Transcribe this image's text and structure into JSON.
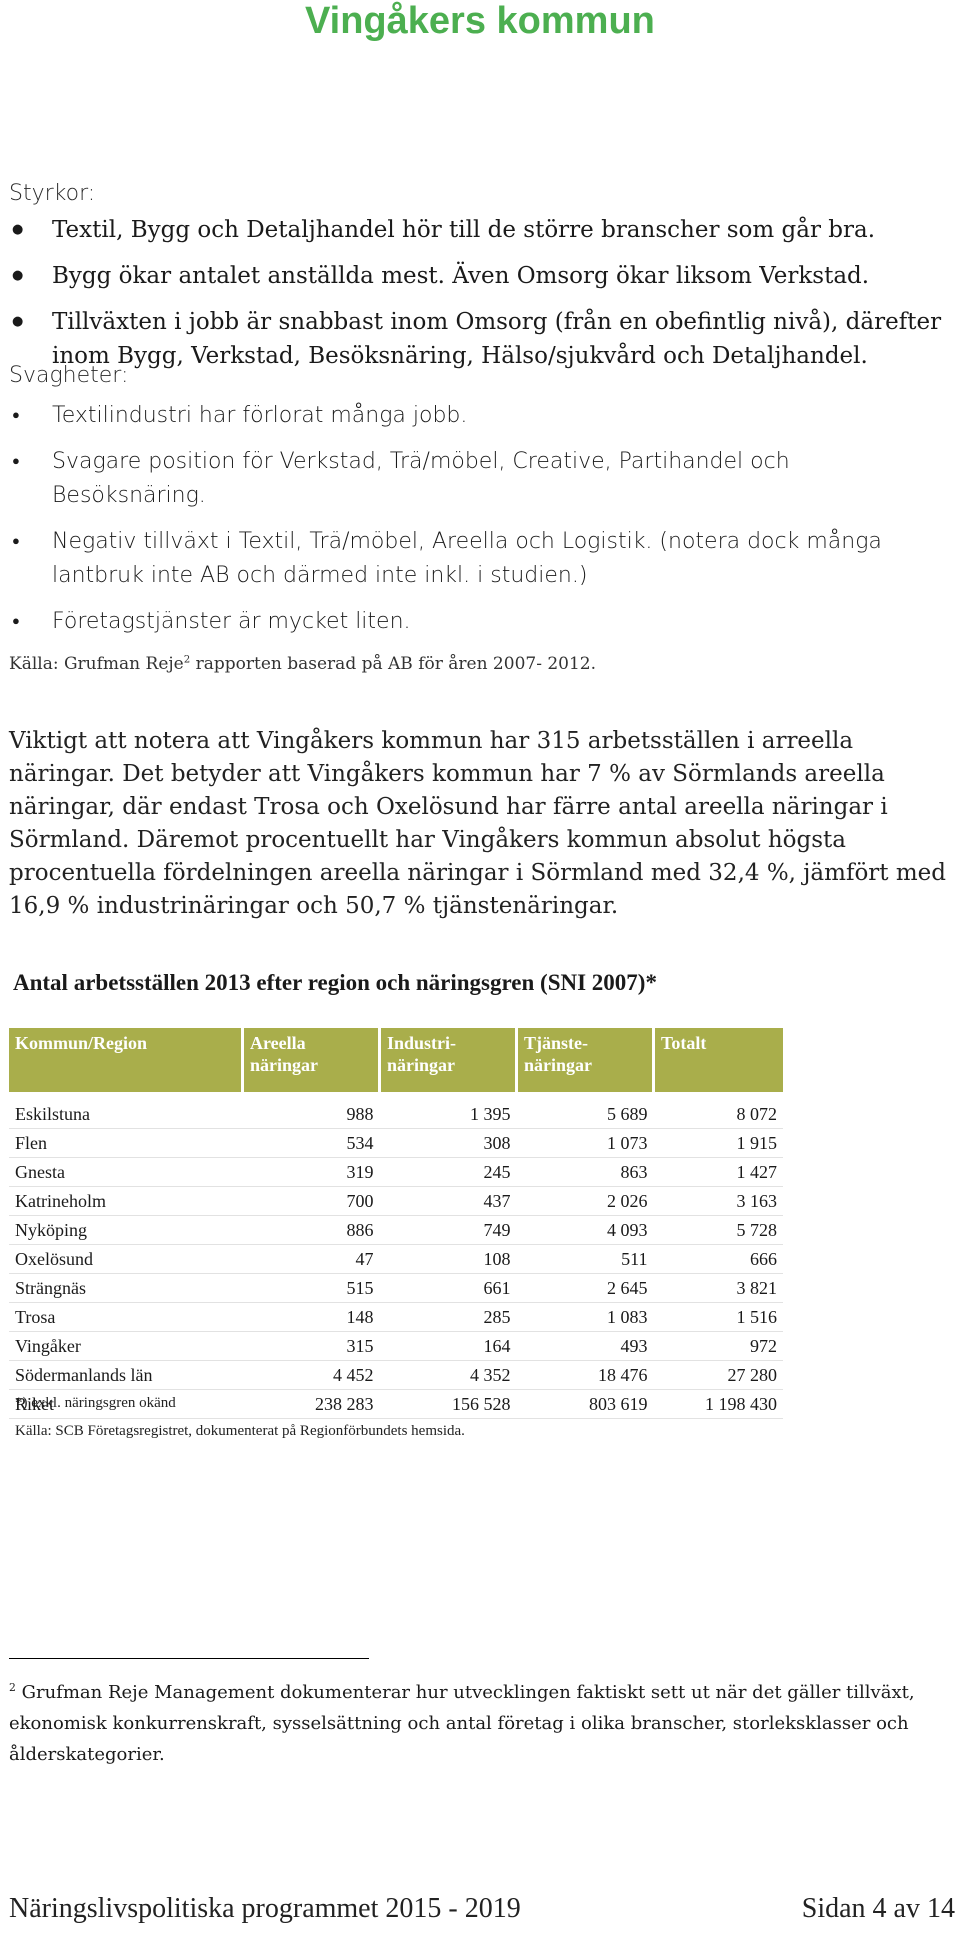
{
  "header": {
    "title": "Vingåkers kommun"
  },
  "strengths": {
    "heading": "Styrkor:",
    "items": [
      "Textil, Bygg och Detaljhandel hör till de större branscher som går bra.",
      "Bygg ökar antalet anställda mest. Även Omsorg ökar liksom Verkstad.",
      "Tillväxten i jobb är snabbast inom Omsorg (från en obefintlig nivå), därefter inom Bygg, Verkstad, Besöksnäring, Hälso/sjukvård och Detaljhandel."
    ]
  },
  "weaknesses": {
    "heading": "Svagheter:",
    "items": [
      "Textilindustri har förlorat många jobb.",
      "Svagare position för Verkstad, Trä/möbel, Creative, Partihandel och Besöksnäring.",
      "Negativ tillväxt i Textil, Trä/möbel, Areella och Logistik. (notera dock många lantbruk inte AB och därmed inte inkl. i studien.)",
      "Företagstjänster är mycket liten."
    ]
  },
  "source_note": {
    "before": "Källa: Grufman Reje",
    "sup": "2",
    "after": " rapporten baserad på AB för åren 2007- 2012."
  },
  "paragraph": "Viktigt att notera att Vingåkers kommun har 315 arbetsställen i arreella näringar. Det betyder att Vingåkers kommun har 7 % av Sörmlands areella näringar, där endast Trosa och Oxelösund har färre antal areella näringar i Sörmland. Däremot procentuellt har Vingåkers kommun absolut högsta procentuella fördelningen areella näringar i Sörmland med 32,4 %, jämfört med 16,9 % industrinäringar och 50,7 % tjänstenäringar.",
  "table": {
    "title": "Antal arbetsställen 2013 efter region och näringsgren (SNI 2007)*",
    "headers": [
      {
        "l1": "Kommun/Region",
        "l2": ""
      },
      {
        "l1": "Areella",
        "l2": "näringar"
      },
      {
        "l1": "Industri-",
        "l2": "näringar"
      },
      {
        "l1": "Tjänste-",
        "l2": "näringar"
      },
      {
        "l1": "Totalt",
        "l2": ""
      }
    ],
    "rows": [
      [
        "Eskilstuna",
        "988",
        "1 395",
        "5 689",
        "8 072"
      ],
      [
        "Flen",
        "534",
        "308",
        "1 073",
        "1 915"
      ],
      [
        "Gnesta",
        "319",
        "245",
        "863",
        "1 427"
      ],
      [
        "Katrineholm",
        "700",
        "437",
        "2 026",
        "3 163"
      ],
      [
        "Nyköping",
        "886",
        "749",
        "4 093",
        "5 728"
      ],
      [
        "Oxelösund",
        "47",
        "108",
        "511",
        "666"
      ],
      [
        "Strängnäs",
        "515",
        "661",
        "2 645",
        "3 821"
      ],
      [
        "Trosa",
        "148",
        "285",
        "1 083",
        "1 516"
      ],
      [
        "Vingåker",
        "315",
        "164",
        "493",
        "972"
      ],
      [
        "Södermanlands län",
        "4 452",
        "4 352",
        "18 476",
        "27 280"
      ],
      [
        "Riket",
        "238 283",
        "156 528",
        "803 619",
        "1 198 430"
      ]
    ],
    "note": "*) exkl. näringsgren okänd",
    "source": "Källa: SCB Företagsregistret, dokumenterat på Regionförbundets hemsida."
  },
  "footnote": {
    "number": "2",
    "text": " Grufman Reje Management dokumenterar hur utvecklingen faktiskt sett ut när det gäller tillväxt, ekonomisk konkurrenskraft, sysselsättning och antal företag i olika branscher, storleksklasser och ålderskategorier."
  },
  "footer": {
    "left": "Näringslivspolitiska programmet 2015 - 2019",
    "right": "Sidan 4 av 14"
  }
}
